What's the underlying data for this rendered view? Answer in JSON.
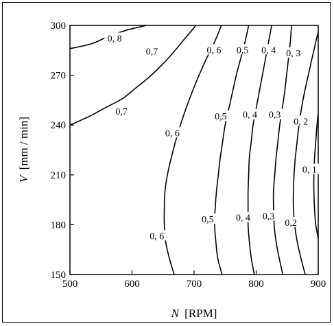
{
  "chart_data": {
    "type": "contour",
    "title": "",
    "xlabel": {
      "var": "N",
      "unit": "[RPM]"
    },
    "ylabel": {
      "var": "V",
      "unit": "[mm / min]"
    },
    "xlim": [
      500,
      900
    ],
    "ylim": [
      150,
      300
    ],
    "xticks": [
      "500",
      "600",
      "700",
      "800",
      "900"
    ],
    "yticks": [
      "150",
      "180",
      "210",
      "240",
      "270",
      "300"
    ],
    "contours": [
      {
        "level": "0, 8",
        "points": [
          [
            500,
            286
          ],
          [
            535,
            289
          ],
          [
            560,
            293
          ],
          [
            590,
            297
          ],
          [
            623,
            300
          ]
        ]
      },
      {
        "level": "0,7",
        "points": [
          [
            500,
            240
          ],
          [
            530,
            245
          ],
          [
            560,
            251
          ],
          [
            585,
            256
          ],
          [
            605,
            262
          ],
          [
            625,
            268
          ],
          [
            645,
            275
          ],
          [
            665,
            283
          ],
          [
            685,
            292
          ],
          [
            703,
            300
          ]
        ]
      },
      {
        "level": "0, 6",
        "points": [
          [
            668,
            150
          ],
          [
            660,
            160
          ],
          [
            654,
            170
          ],
          [
            652,
            180
          ],
          [
            652,
            190
          ],
          [
            653,
            200
          ],
          [
            657,
            210
          ],
          [
            663,
            220
          ],
          [
            670,
            230
          ],
          [
            678,
            240
          ],
          [
            687,
            250
          ],
          [
            697,
            260
          ],
          [
            708,
            270
          ],
          [
            720,
            280
          ],
          [
            733,
            290
          ],
          [
            744,
            300
          ]
        ]
      },
      {
        "level": "0, 5",
        "points": [
          [
            745,
            150
          ],
          [
            738,
            160
          ],
          [
            735,
            170
          ],
          [
            733,
            180
          ],
          [
            734,
            190
          ],
          [
            736,
            200
          ],
          [
            739,
            210
          ],
          [
            742,
            220
          ],
          [
            746,
            230
          ],
          [
            750,
            240
          ],
          [
            756,
            250
          ],
          [
            762,
            260
          ],
          [
            768,
            270
          ],
          [
            775,
            280
          ],
          [
            782,
            290
          ],
          [
            788,
            300
          ]
        ]
      },
      {
        "level": "0, 4",
        "points": [
          [
            797,
            150
          ],
          [
            792,
            160
          ],
          [
            789,
            170
          ],
          [
            787,
            180
          ],
          [
            787,
            190
          ],
          [
            787,
            200
          ],
          [
            788,
            210
          ],
          [
            789,
            220
          ],
          [
            792,
            230
          ],
          [
            795,
            240
          ],
          [
            800,
            250
          ],
          [
            805,
            260
          ],
          [
            810,
            270
          ],
          [
            815,
            280
          ],
          [
            820,
            290
          ],
          [
            825,
            300
          ]
        ]
      },
      {
        "level": "0, 3",
        "points": [
          [
            843,
            150
          ],
          [
            837,
            160
          ],
          [
            832,
            170
          ],
          [
            829,
            180
          ],
          [
            828,
            190
          ],
          [
            828,
            200
          ],
          [
            830,
            210
          ],
          [
            832,
            220
          ],
          [
            835,
            230
          ],
          [
            838,
            240
          ],
          [
            842,
            250
          ],
          [
            846,
            260
          ],
          [
            849,
            270
          ],
          [
            852,
            280
          ],
          [
            855,
            290
          ],
          [
            857,
            300
          ]
        ]
      },
      {
        "level": "0,2",
        "points": [
          [
            879,
            150
          ],
          [
            872,
            160
          ],
          [
            866,
            170
          ],
          [
            862,
            180
          ],
          [
            860,
            190
          ],
          [
            860,
            200
          ],
          [
            861,
            210
          ],
          [
            863,
            220
          ],
          [
            866,
            230
          ],
          [
            869,
            240
          ],
          [
            873,
            250
          ],
          [
            878,
            260
          ],
          [
            884,
            270
          ],
          [
            890,
            280
          ],
          [
            896,
            290
          ],
          [
            900,
            296
          ]
        ]
      },
      {
        "level": "0, 1",
        "points": [
          [
            900,
            172
          ],
          [
            896,
            180
          ],
          [
            894,
            190
          ],
          [
            893,
            200
          ],
          [
            893,
            210
          ],
          [
            894,
            220
          ],
          [
            896,
            230
          ],
          [
            898,
            240
          ],
          [
            900,
            247
          ]
        ]
      }
    ],
    "contour_labels": [
      {
        "text": "0, 8",
        "x": 572,
        "y": 292
      },
      {
        "text": "0,7",
        "x": 632,
        "y": 284
      },
      {
        "text": "0,7",
        "x": 583,
        "y": 248
      },
      {
        "text": "0, 6",
        "x": 732,
        "y": 285
      },
      {
        "text": "0, 6",
        "x": 665,
        "y": 235
      },
      {
        "text": "0, 6",
        "x": 640,
        "y": 173
      },
      {
        "text": "0,5",
        "x": 778,
        "y": 285
      },
      {
        "text": "0,5",
        "x": 743,
        "y": 245
      },
      {
        "text": "0,5",
        "x": 722,
        "y": 183
      },
      {
        "text": "0, 4",
        "x": 820,
        "y": 285
      },
      {
        "text": "0, 4",
        "x": 790,
        "y": 246
      },
      {
        "text": "0, 4",
        "x": 779,
        "y": 184
      },
      {
        "text": "0, 3",
        "x": 860,
        "y": 283
      },
      {
        "text": "0,3",
        "x": 830,
        "y": 246
      },
      {
        "text": "0,3",
        "x": 820,
        "y": 185
      },
      {
        "text": "0, 2",
        "x": 872,
        "y": 242
      },
      {
        "text": "0,2",
        "x": 856,
        "y": 181
      },
      {
        "text": "0, 1",
        "x": 886,
        "y": 213
      }
    ],
    "grid": false,
    "legend": "none"
  }
}
